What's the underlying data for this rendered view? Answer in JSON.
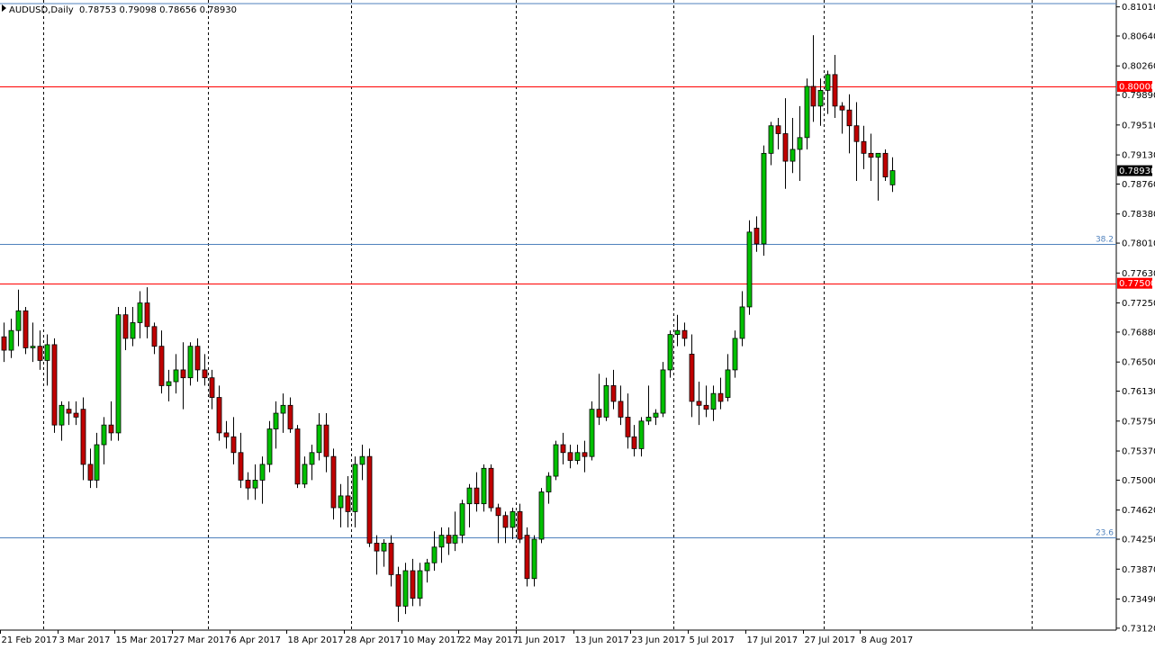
{
  "header": {
    "symbol": "AUDUSD,Daily",
    "ohlc": "0.78753 0.79098 0.78656 0.78930"
  },
  "colors": {
    "bull": "#00c000",
    "bear": "#c00000",
    "wick": "#000000",
    "resistance_line": "#ff0000",
    "fib_line": "#4f81bd",
    "fib_label": "#4f81bd",
    "price_tag_text": "#ffffff",
    "current_price_bg": "#000000"
  },
  "chart_data": {
    "type": "candlestick",
    "title": "AUDUSD,Daily",
    "ylim": [
      0.7313,
      0.8104
    ],
    "y_ticks": [
      "0.81010",
      "0.80640",
      "0.80260",
      "0.79890",
      "0.79510",
      "0.79130",
      "0.78760",
      "0.78380",
      "0.78010",
      "0.77630",
      "0.77250",
      "0.76880",
      "0.76500",
      "0.76130",
      "0.75750",
      "0.75370",
      "0.75000",
      "0.74620",
      "0.74250",
      "0.73870",
      "0.73490",
      "0.73120"
    ],
    "x_labels": [
      {
        "label": "21 Feb 2017",
        "index": 0
      },
      {
        "label": "3 Mar 2017",
        "index": 8
      },
      {
        "label": "15 Mar 2017",
        "index": 16
      },
      {
        "label": "27 Mar 2017",
        "index": 24
      },
      {
        "label": "6 Apr 2017",
        "index": 32
      },
      {
        "label": "18 Apr 2017",
        "index": 40
      },
      {
        "label": "28 Apr 2017",
        "index": 48
      },
      {
        "label": "10 May 2017",
        "index": 56
      },
      {
        "label": "22 May 2017",
        "index": 64
      },
      {
        "label": "1 Jun 2017",
        "index": 72
      },
      {
        "label": "13 Jun 2017",
        "index": 80
      },
      {
        "label": "23 Jun 2017",
        "index": 88
      },
      {
        "label": "5 Jul 2017",
        "index": 96
      },
      {
        "label": "17 Jul 2017",
        "index": 104
      },
      {
        "label": "27 Jul 2017",
        "index": 112
      },
      {
        "label": "8 Aug 2017",
        "index": 120
      }
    ],
    "period_separator_indices": [
      6,
      29,
      49,
      72,
      94,
      115
    ],
    "trailing_separator_slot": 144,
    "horizontal_lines": [
      {
        "price": 0.8,
        "label": "0.80000",
        "kind": "resistance"
      },
      {
        "price": 0.775,
        "label": "0.77500",
        "kind": "resistance"
      },
      {
        "price": 0.78,
        "label": "38.2",
        "kind": "fib"
      },
      {
        "price": 0.7427,
        "label": "23.6",
        "kind": "fib"
      }
    ],
    "current_price": {
      "price": 0.7893,
      "label": "0.78930"
    },
    "candles": [
      [
        0.7682,
        0.77,
        0.765,
        0.7665
      ],
      [
        0.7665,
        0.7705,
        0.7655,
        0.769
      ],
      [
        0.769,
        0.7742,
        0.767,
        0.7715
      ],
      [
        0.7715,
        0.772,
        0.766,
        0.7668
      ],
      [
        0.7668,
        0.77,
        0.765,
        0.767
      ],
      [
        0.767,
        0.769,
        0.764,
        0.7652
      ],
      [
        0.7652,
        0.7685,
        0.762,
        0.7672
      ],
      [
        0.7672,
        0.768,
        0.756,
        0.757
      ],
      [
        0.757,
        0.76,
        0.755,
        0.7595
      ],
      [
        0.759,
        0.76,
        0.757,
        0.7585
      ],
      [
        0.7585,
        0.76,
        0.757,
        0.758
      ],
      [
        0.759,
        0.7605,
        0.75,
        0.752
      ],
      [
        0.752,
        0.754,
        0.749,
        0.75
      ],
      [
        0.75,
        0.756,
        0.749,
        0.7545
      ],
      [
        0.7545,
        0.758,
        0.752,
        0.757
      ],
      [
        0.757,
        0.76,
        0.755,
        0.756
      ],
      [
        0.756,
        0.772,
        0.755,
        0.771
      ],
      [
        0.771,
        0.772,
        0.7665,
        0.768
      ],
      [
        0.768,
        0.772,
        0.767,
        0.77
      ],
      [
        0.77,
        0.774,
        0.768,
        0.7725
      ],
      [
        0.7725,
        0.7745,
        0.768,
        0.7695
      ],
      [
        0.7695,
        0.77,
        0.766,
        0.767
      ],
      [
        0.767,
        0.769,
        0.761,
        0.762
      ],
      [
        0.762,
        0.764,
        0.76,
        0.7625
      ],
      [
        0.7625,
        0.766,
        0.761,
        0.764
      ],
      [
        0.764,
        0.7675,
        0.759,
        0.763
      ],
      [
        0.763,
        0.7675,
        0.762,
        0.767
      ],
      [
        0.767,
        0.768,
        0.7625,
        0.764
      ],
      [
        0.764,
        0.766,
        0.762,
        0.763
      ],
      [
        0.763,
        0.764,
        0.759,
        0.7605
      ],
      [
        0.7605,
        0.762,
        0.755,
        0.756
      ],
      [
        0.756,
        0.7575,
        0.754,
        0.7555
      ],
      [
        0.7555,
        0.758,
        0.752,
        0.7535
      ],
      [
        0.7535,
        0.756,
        0.749,
        0.75
      ],
      [
        0.75,
        0.751,
        0.7475,
        0.749
      ],
      [
        0.749,
        0.752,
        0.7475,
        0.75
      ],
      [
        0.75,
        0.753,
        0.747,
        0.752
      ],
      [
        0.752,
        0.7575,
        0.751,
        0.7565
      ],
      [
        0.7565,
        0.76,
        0.754,
        0.7585
      ],
      [
        0.7585,
        0.761,
        0.756,
        0.7595
      ],
      [
        0.7595,
        0.7605,
        0.756,
        0.7565
      ],
      [
        0.7565,
        0.757,
        0.749,
        0.7495
      ],
      [
        0.7495,
        0.753,
        0.749,
        0.752
      ],
      [
        0.752,
        0.7545,
        0.75,
        0.7535
      ],
      [
        0.7535,
        0.7585,
        0.7525,
        0.757
      ],
      [
        0.757,
        0.7585,
        0.751,
        0.753
      ],
      [
        0.753,
        0.754,
        0.745,
        0.7465
      ],
      [
        0.7465,
        0.7495,
        0.744,
        0.748
      ],
      [
        0.748,
        0.7505,
        0.744,
        0.746
      ],
      [
        0.746,
        0.753,
        0.744,
        0.752
      ],
      [
        0.752,
        0.7545,
        0.75,
        0.753
      ],
      [
        0.753,
        0.754,
        0.7415,
        0.742
      ],
      [
        0.742,
        0.743,
        0.738,
        0.741
      ],
      [
        0.741,
        0.7425,
        0.739,
        0.742
      ],
      [
        0.742,
        0.743,
        0.7365,
        0.738
      ],
      [
        0.738,
        0.739,
        0.732,
        0.734
      ],
      [
        0.734,
        0.7395,
        0.733,
        0.7385
      ],
      [
        0.7385,
        0.74,
        0.734,
        0.735
      ],
      [
        0.735,
        0.7395,
        0.734,
        0.7385
      ],
      [
        0.7385,
        0.74,
        0.737,
        0.7395
      ],
      [
        0.7395,
        0.7435,
        0.7385,
        0.7415
      ],
      [
        0.7415,
        0.744,
        0.7395,
        0.743
      ],
      [
        0.743,
        0.744,
        0.7405,
        0.742
      ],
      [
        0.742,
        0.746,
        0.741,
        0.743
      ],
      [
        0.743,
        0.7475,
        0.742,
        0.747
      ],
      [
        0.747,
        0.7495,
        0.744,
        0.749
      ],
      [
        0.749,
        0.751,
        0.746,
        0.747
      ],
      [
        0.747,
        0.752,
        0.746,
        0.7515
      ],
      [
        0.7515,
        0.752,
        0.746,
        0.7465
      ],
      [
        0.7465,
        0.747,
        0.742,
        0.7455
      ],
      [
        0.7455,
        0.746,
        0.742,
        0.744
      ],
      [
        0.744,
        0.7465,
        0.7425,
        0.746
      ],
      [
        0.746,
        0.747,
        0.742,
        0.7425
      ],
      [
        0.743,
        0.744,
        0.7365,
        0.7375
      ],
      [
        0.7375,
        0.743,
        0.7365,
        0.7425
      ],
      [
        0.7425,
        0.749,
        0.742,
        0.7485
      ],
      [
        0.7485,
        0.751,
        0.747,
        0.7505
      ],
      [
        0.7505,
        0.755,
        0.75,
        0.7545
      ],
      [
        0.7545,
        0.756,
        0.752,
        0.7535
      ],
      [
        0.7535,
        0.7545,
        0.7515,
        0.7525
      ],
      [
        0.7525,
        0.7545,
        0.752,
        0.7535
      ],
      [
        0.7535,
        0.755,
        0.751,
        0.753
      ],
      [
        0.753,
        0.76,
        0.7525,
        0.759
      ],
      [
        0.759,
        0.7635,
        0.757,
        0.758
      ],
      [
        0.758,
        0.763,
        0.7575,
        0.762
      ],
      [
        0.762,
        0.764,
        0.759,
        0.76
      ],
      [
        0.76,
        0.762,
        0.757,
        0.758
      ],
      [
        0.758,
        0.761,
        0.754,
        0.7555
      ],
      [
        0.7555,
        0.757,
        0.753,
        0.754
      ],
      [
        0.754,
        0.758,
        0.753,
        0.7575
      ],
      [
        0.7575,
        0.762,
        0.757,
        0.758
      ],
      [
        0.758,
        0.759,
        0.757,
        0.7585
      ],
      [
        0.7585,
        0.765,
        0.758,
        0.764
      ],
      [
        0.764,
        0.769,
        0.763,
        0.7685
      ],
      [
        0.7685,
        0.771,
        0.767,
        0.769
      ],
      [
        0.769,
        0.77,
        0.767,
        0.768
      ],
      [
        0.766,
        0.7685,
        0.758,
        0.76
      ],
      [
        0.76,
        0.7625,
        0.757,
        0.7595
      ],
      [
        0.7595,
        0.762,
        0.758,
        0.759
      ],
      [
        0.759,
        0.762,
        0.7575,
        0.761
      ],
      [
        0.761,
        0.763,
        0.759,
        0.76
      ],
      [
        0.7605,
        0.766,
        0.76,
        0.764
      ],
      [
        0.764,
        0.769,
        0.763,
        0.768
      ],
      [
        0.768,
        0.774,
        0.767,
        0.772
      ],
      [
        0.772,
        0.783,
        0.771,
        0.7815
      ],
      [
        0.782,
        0.7835,
        0.779,
        0.78
      ],
      [
        0.78,
        0.7925,
        0.7785,
        0.7915
      ],
      [
        0.7915,
        0.7955,
        0.79,
        0.795
      ],
      [
        0.795,
        0.796,
        0.792,
        0.794
      ],
      [
        0.794,
        0.7985,
        0.787,
        0.7905
      ],
      [
        0.7905,
        0.796,
        0.789,
        0.792
      ],
      [
        0.792,
        0.7975,
        0.788,
        0.7935
      ],
      [
        0.7935,
        0.801,
        0.792,
        0.8
      ],
      [
        0.8,
        0.8065,
        0.7955,
        0.7975
      ],
      [
        0.7975,
        0.801,
        0.795,
        0.7995
      ],
      [
        0.7995,
        0.802,
        0.7965,
        0.8015
      ],
      [
        0.8015,
        0.804,
        0.796,
        0.7975
      ],
      [
        0.7975,
        0.798,
        0.794,
        0.797
      ],
      [
        0.797,
        0.799,
        0.7915,
        0.795
      ],
      [
        0.795,
        0.798,
        0.788,
        0.793
      ],
      [
        0.793,
        0.795,
        0.7895,
        0.7915
      ],
      [
        0.7915,
        0.794,
        0.788,
        0.791
      ],
      [
        0.791,
        0.7915,
        0.7855,
        0.7915
      ],
      [
        0.7915,
        0.792,
        0.788,
        0.7885
      ],
      [
        0.7875,
        0.791,
        0.7866,
        0.7893
      ]
    ]
  }
}
